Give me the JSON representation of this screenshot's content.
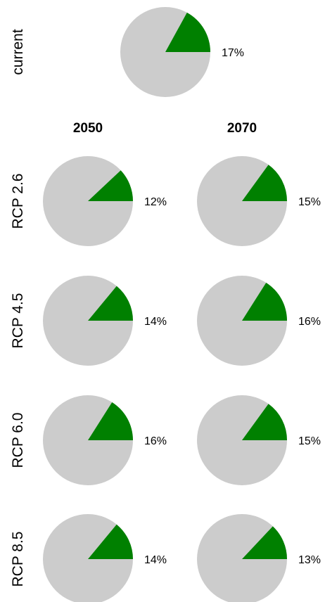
{
  "chart_data": {
    "type": "pie",
    "colors": {
      "share": "#008000",
      "rest": "#cccccc"
    },
    "current": {
      "label": "current",
      "value": 17,
      "text": "17%"
    },
    "columns": [
      "2050",
      "2070"
    ],
    "rows": [
      {
        "label": "RCP 2.6",
        "values": [
          12,
          15
        ],
        "texts": [
          "12%",
          "15%"
        ]
      },
      {
        "label": "RCP 4.5",
        "values": [
          14,
          16
        ],
        "texts": [
          "14%",
          "16%"
        ]
      },
      {
        "label": "RCP 6.0",
        "values": [
          16,
          15
        ],
        "texts": [
          "16%",
          "15%"
        ]
      },
      {
        "label": "RCP 8.5",
        "values": [
          14,
          13
        ],
        "texts": [
          "14%",
          "13%"
        ]
      }
    ]
  }
}
